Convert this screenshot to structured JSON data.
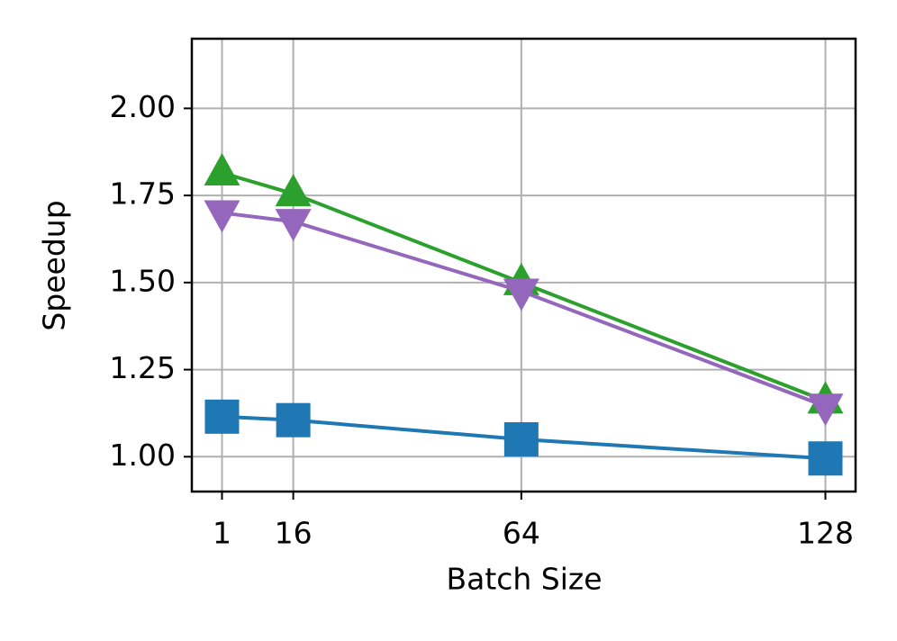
{
  "chart_data": {
    "type": "line",
    "x_label": "Batch Size",
    "y_label": "Speedup",
    "x": [
      1,
      16,
      64,
      128
    ],
    "series": [
      {
        "color": "#1f77b4",
        "marker": "square",
        "values": [
          1.115,
          1.105,
          1.05,
          0.995
        ]
      },
      {
        "color": "#2ca02c",
        "marker": "triangle-up",
        "values": [
          1.815,
          1.755,
          1.5,
          1.16
        ]
      },
      {
        "color": "#9467bd",
        "marker": "triangle-down",
        "values": [
          1.7,
          1.675,
          1.475,
          1.145
        ]
      }
    ],
    "xlim": [
      -5.35,
      134.35
    ],
    "ylim": [
      0.9,
      2.2
    ],
    "xticks": [
      1,
      16,
      64,
      128
    ],
    "yticks": [
      {
        "value": 1,
        "label": "1.00"
      },
      1.25,
      {
        "value": 1.5,
        "label": "1.50"
      },
      1.75,
      {
        "value": 2,
        "label": "2.00"
      }
    ],
    "grid": true
  }
}
